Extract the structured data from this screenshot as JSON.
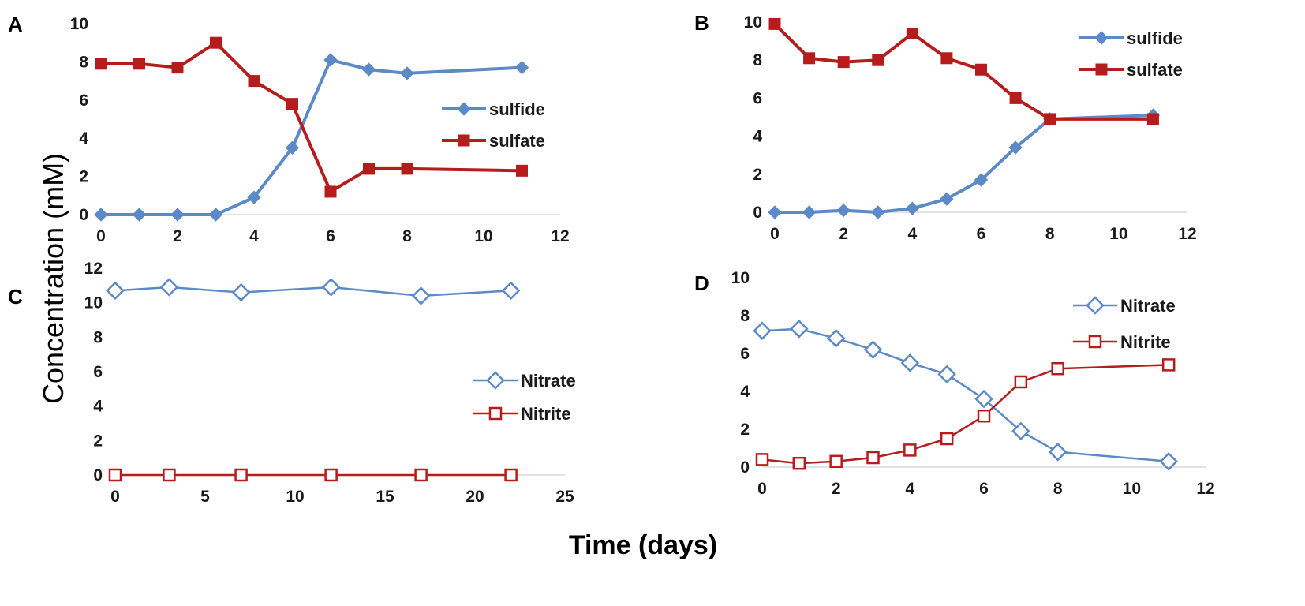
{
  "figure": {
    "ylabel": "Concentration (mM)",
    "xlabel": "Time (days)"
  },
  "colors": {
    "blue": "#5b8ac6",
    "red": "#b71c1c"
  },
  "chart_data": [
    {
      "panel": "A",
      "type": "line",
      "xlim": [
        0,
        12
      ],
      "ylim": [
        0,
        10
      ],
      "xticks": [
        0,
        2,
        4,
        6,
        8,
        10,
        12
      ],
      "yticks": [
        0,
        2,
        4,
        6,
        8,
        10
      ],
      "legend_position": "right",
      "series": [
        {
          "name": "sulfide",
          "color": "blue",
          "marker": "diamond-filled",
          "x": [
            0,
            1,
            2,
            3,
            4,
            5,
            6,
            7,
            8,
            11
          ],
          "values": [
            0,
            0,
            0,
            0,
            0.9,
            3.5,
            8.1,
            7.6,
            7.4,
            7.7
          ]
        },
        {
          "name": "sulfate",
          "color": "red",
          "marker": "square-filled",
          "x": [
            0,
            1,
            2,
            3,
            4,
            5,
            6,
            7,
            8,
            11
          ],
          "values": [
            7.9,
            7.9,
            7.7,
            9.0,
            7.0,
            5.8,
            1.2,
            2.4,
            2.4,
            2.3
          ]
        }
      ]
    },
    {
      "panel": "B",
      "type": "line",
      "xlim": [
        0,
        12
      ],
      "ylim": [
        0,
        10
      ],
      "xticks": [
        0,
        2,
        4,
        6,
        8,
        10,
        12
      ],
      "yticks": [
        0,
        2,
        4,
        6,
        8,
        10
      ],
      "legend_position": "top-right",
      "series": [
        {
          "name": "sulfide",
          "color": "blue",
          "marker": "diamond-filled",
          "x": [
            0,
            1,
            2,
            3,
            4,
            5,
            6,
            7,
            8,
            11
          ],
          "values": [
            0,
            0,
            0.1,
            0,
            0.2,
            0.7,
            1.7,
            3.4,
            4.9,
            5.1
          ]
        },
        {
          "name": "sulfate",
          "color": "red",
          "marker": "square-filled",
          "x": [
            0,
            1,
            2,
            3,
            4,
            5,
            6,
            7,
            8,
            11
          ],
          "values": [
            9.9,
            8.1,
            7.9,
            8.0,
            9.4,
            8.1,
            7.5,
            6.0,
            4.9,
            4.9
          ]
        }
      ]
    },
    {
      "panel": "C",
      "type": "line",
      "xlim": [
        0,
        25
      ],
      "ylim": [
        0,
        12
      ],
      "xticks": [
        0,
        5,
        10,
        15,
        20,
        25
      ],
      "yticks": [
        0,
        2,
        4,
        6,
        8,
        10,
        12
      ],
      "legend_position": "right",
      "series": [
        {
          "name": "Nitrate",
          "color": "blue",
          "marker": "diamond-open",
          "x": [
            0,
            3,
            7,
            12,
            17,
            22
          ],
          "values": [
            10.7,
            10.9,
            10.6,
            10.9,
            10.4,
            10.7
          ]
        },
        {
          "name": "Nitrite",
          "color": "red",
          "marker": "square-open",
          "x": [
            0,
            3,
            7,
            12,
            17,
            22
          ],
          "values": [
            0,
            0,
            0,
            0,
            0,
            0
          ]
        }
      ]
    },
    {
      "panel": "D",
      "type": "line",
      "xlim": [
        0,
        12
      ],
      "ylim": [
        0,
        10
      ],
      "xticks": [
        0,
        2,
        4,
        6,
        8,
        10,
        12
      ],
      "yticks": [
        0,
        2,
        4,
        6,
        8,
        10
      ],
      "legend_position": "top-right",
      "series": [
        {
          "name": "Nitrate",
          "color": "blue",
          "marker": "diamond-open",
          "x": [
            0,
            1,
            2,
            3,
            4,
            5,
            6,
            7,
            8,
            11
          ],
          "values": [
            7.2,
            7.3,
            6.8,
            6.2,
            5.5,
            4.9,
            3.6,
            1.9,
            0.8,
            0.3
          ]
        },
        {
          "name": "Nitrite",
          "color": "red",
          "marker": "square-open",
          "x": [
            0,
            1,
            2,
            3,
            4,
            5,
            6,
            7,
            8,
            11
          ],
          "values": [
            0.4,
            0.2,
            0.3,
            0.5,
            0.9,
            1.5,
            2.7,
            4.5,
            5.2,
            5.4
          ]
        }
      ]
    }
  ]
}
